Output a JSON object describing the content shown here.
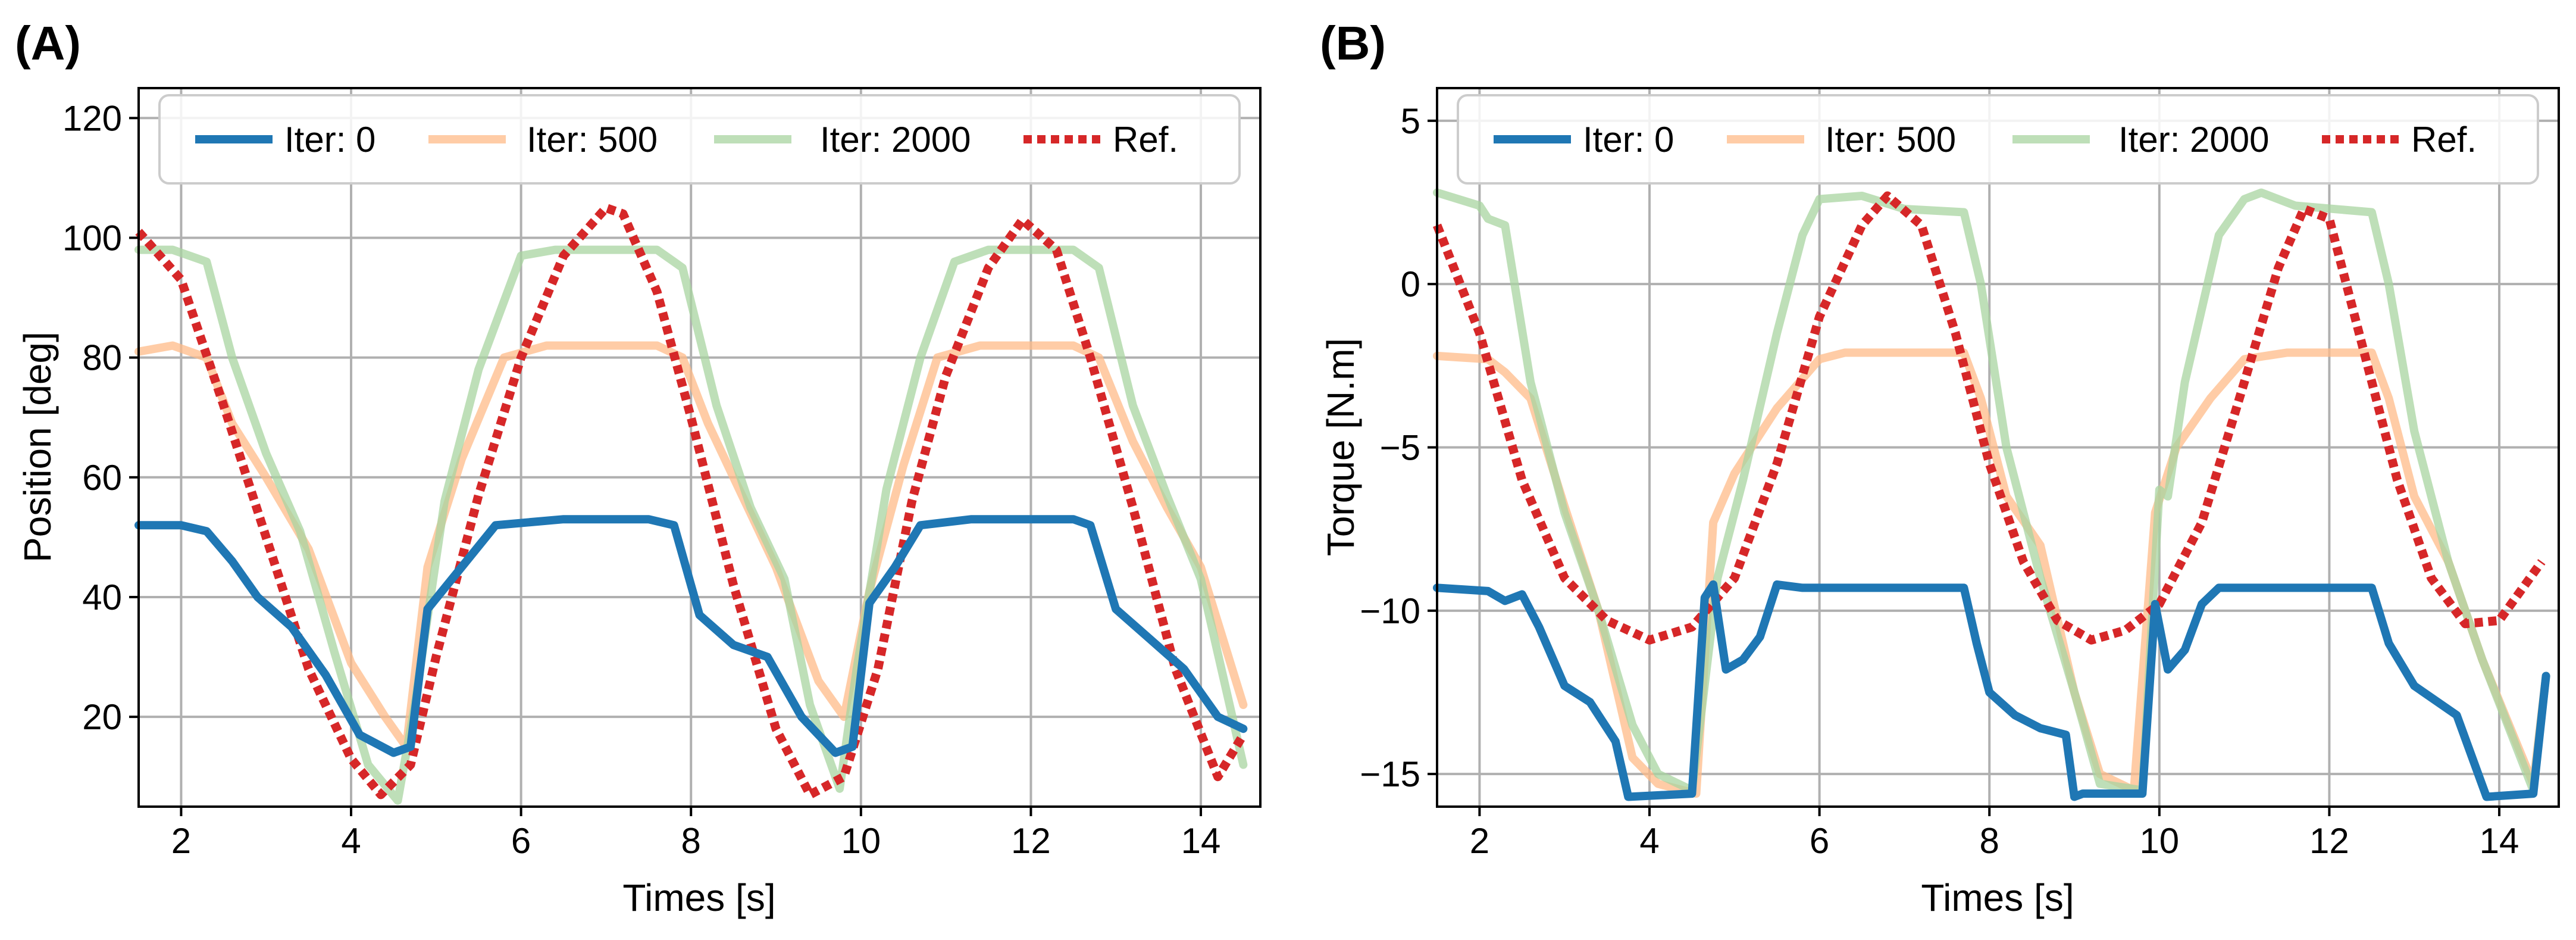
{
  "colors": {
    "iter0": "#1f77b4",
    "iter500": "#ffbb88",
    "iter2000": "#a8d4a0",
    "ref": "#d62728"
  },
  "chart_data": [
    {
      "panel_label": "(A)",
      "type": "line",
      "xlabel": "Times [s]",
      "ylabel": "Position [deg]",
      "xlim": [
        1.5,
        14.7
      ],
      "ylim": [
        5,
        125
      ],
      "xticks": [
        2,
        4,
        6,
        8,
        10,
        12,
        14
      ],
      "yticks": [
        20,
        40,
        60,
        80,
        100,
        120
      ],
      "grid": true,
      "legend_position": "top",
      "series": [
        {
          "name": "Iter: 0",
          "color": "#1f77b4",
          "style": "solid",
          "opacity": 1,
          "x": [
            1.5,
            2.0,
            2.3,
            2.6,
            2.9,
            3.3,
            3.7,
            4.1,
            4.5,
            4.7,
            4.9,
            5.3,
            5.7,
            6.5,
            7.5,
            7.8,
            8.1,
            8.5,
            8.9,
            9.3,
            9.7,
            9.9,
            10.1,
            10.4,
            10.7,
            11.3,
            12.5,
            12.7,
            13.0,
            13.4,
            13.8,
            14.2,
            14.5
          ],
          "values": [
            52,
            52,
            51,
            46,
            40,
            35,
            27,
            17,
            14,
            15,
            38,
            45,
            52,
            53,
            53,
            52,
            37,
            32,
            30,
            20,
            14,
            15,
            39,
            45,
            52,
            53,
            53,
            52,
            38,
            33,
            28,
            20,
            18
          ]
        },
        {
          "name": "Iter: 500",
          "color": "#ffbb88",
          "style": "solid",
          "opacity": 0.75,
          "x": [
            1.5,
            1.9,
            2.3,
            2.6,
            3.0,
            3.5,
            4.0,
            4.4,
            4.65,
            4.9,
            5.3,
            5.8,
            6.3,
            7.6,
            7.9,
            8.2,
            8.6,
            9.0,
            9.5,
            9.8,
            10.1,
            10.5,
            10.9,
            11.4,
            12.5,
            12.8,
            13.2,
            13.6,
            14.0,
            14.5
          ],
          "values": [
            81,
            82,
            80,
            69,
            60,
            48,
            29,
            20,
            15,
            45,
            63,
            80,
            82,
            82,
            80,
            69,
            57,
            45,
            26,
            20,
            41,
            62,
            80,
            82,
            82,
            80,
            66,
            55,
            45,
            22
          ]
        },
        {
          "name": "Iter: 2000",
          "color": "#a8d4a0",
          "style": "solid",
          "opacity": 0.75,
          "x": [
            1.5,
            1.9,
            2.3,
            2.6,
            3.0,
            3.4,
            3.8,
            4.2,
            4.55,
            4.75,
            5.1,
            5.5,
            6.0,
            6.4,
            7.6,
            7.9,
            8.3,
            8.7,
            9.1,
            9.4,
            9.75,
            9.95,
            10.3,
            10.7,
            11.1,
            11.5,
            12.5,
            12.8,
            13.2,
            13.6,
            14.0,
            14.5
          ],
          "values": [
            98,
            98,
            96,
            80,
            64,
            51,
            31,
            12,
            6,
            22,
            56,
            78,
            97,
            98,
            98,
            95,
            72,
            55,
            43,
            22,
            8,
            28,
            58,
            80,
            96,
            98,
            98,
            95,
            72,
            57,
            43,
            12
          ]
        },
        {
          "name": "Ref.",
          "color": "#d62728",
          "style": "dotted",
          "opacity": 1,
          "x": [
            1.5,
            2.0,
            2.5,
            3.0,
            3.5,
            4.0,
            4.35,
            4.7,
            5.0,
            5.5,
            6.0,
            6.5,
            7.0,
            7.2,
            7.6,
            8.0,
            8.5,
            9.0,
            9.4,
            9.8,
            10.2,
            10.6,
            11.0,
            11.5,
            11.9,
            12.3,
            12.7,
            13.2,
            13.7,
            14.2,
            14.5
          ],
          "values": [
            101,
            93,
            72,
            50,
            28,
            13,
            7,
            12,
            30,
            57,
            80,
            97,
            105,
            104,
            91,
            70,
            42,
            18,
            7,
            10,
            28,
            56,
            77,
            95,
            103,
            98,
            80,
            55,
            28,
            10,
            17
          ]
        }
      ]
    },
    {
      "panel_label": "(B)",
      "type": "line",
      "xlabel": "Times [s]",
      "ylabel": "Torque [N.m]",
      "xlim": [
        1.5,
        14.7
      ],
      "ylim": [
        -16,
        6
      ],
      "xticks": [
        2,
        4,
        6,
        8,
        10,
        12,
        14
      ],
      "yticks": [
        -15,
        -10,
        -5,
        0,
        5
      ],
      "grid": true,
      "legend_position": "top",
      "series": [
        {
          "name": "Iter: 0",
          "color": "#1f77b4",
          "style": "solid",
          "opacity": 1,
          "x": [
            1.5,
            2.1,
            2.3,
            2.5,
            2.7,
            3.0,
            3.3,
            3.6,
            3.75,
            4.5,
            4.65,
            4.75,
            4.9,
            5.1,
            5.3,
            5.5,
            5.8,
            7.7,
            7.85,
            8.0,
            8.3,
            8.6,
            8.9,
            9.0,
            9.1,
            9.8,
            9.95,
            10.1,
            10.3,
            10.5,
            10.7,
            12.5,
            12.7,
            13.0,
            13.5,
            13.85,
            14.4,
            14.55
          ],
          "values": [
            -9.3,
            -9.4,
            -9.7,
            -9.5,
            -10.5,
            -12.3,
            -12.8,
            -14,
            -15.7,
            -15.6,
            -9.6,
            -9.2,
            -11.8,
            -11.5,
            -10.8,
            -9.2,
            -9.3,
            -9.3,
            -11.0,
            -12.5,
            -13.2,
            -13.6,
            -13.8,
            -15.7,
            -15.6,
            -15.6,
            -9.8,
            -11.8,
            -11.2,
            -9.8,
            -9.3,
            -9.3,
            -11.0,
            -12.3,
            -13.2,
            -15.7,
            -15.6,
            -12.0
          ]
        },
        {
          "name": "Iter: 500",
          "color": "#ffbb88",
          "style": "solid",
          "opacity": 0.75,
          "x": [
            1.5,
            2.1,
            2.3,
            2.6,
            3.0,
            3.4,
            3.8,
            4.1,
            4.55,
            4.75,
            5.0,
            5.5,
            6.0,
            6.3,
            7.7,
            7.9,
            8.2,
            8.6,
            9.0,
            9.3,
            9.7,
            9.95,
            10.2,
            10.6,
            11.0,
            11.5,
            12.5,
            12.7,
            13.0,
            13.4,
            13.8,
            14.4,
            14.55
          ],
          "values": [
            -2.2,
            -2.3,
            -2.7,
            -3.5,
            -6.8,
            -10.0,
            -14.5,
            -15.3,
            -15.6,
            -7.3,
            -5.8,
            -3.8,
            -2.3,
            -2.1,
            -2.1,
            -3.5,
            -6.5,
            -8.0,
            -12.5,
            -15.0,
            -15.5,
            -7.0,
            -5.0,
            -3.5,
            -2.3,
            -2.1,
            -2.1,
            -3.5,
            -6.5,
            -8.5,
            -11.5,
            -15.3,
            -12.0
          ]
        },
        {
          "name": "Iter: 2000",
          "color": "#a8d4a0",
          "style": "solid",
          "opacity": 0.75,
          "x": [
            1.5,
            2.0,
            2.1,
            2.3,
            2.6,
            3.0,
            3.4,
            3.8,
            4.1,
            4.5,
            4.8,
            5.1,
            5.5,
            5.8,
            6.0,
            6.5,
            7.0,
            7.7,
            7.9,
            8.2,
            8.6,
            9.0,
            9.3,
            9.8,
            10.0,
            10.1,
            10.3,
            10.7,
            11.0,
            11.2,
            11.6,
            12.5,
            12.7,
            13.0,
            13.4,
            13.8,
            14.4,
            14.55
          ],
          "values": [
            2.8,
            2.4,
            2.0,
            1.8,
            -3.0,
            -7.0,
            -10.0,
            -13.5,
            -15.0,
            -15.5,
            -9.0,
            -6.0,
            -1.5,
            1.5,
            2.6,
            2.7,
            2.3,
            2.2,
            0.0,
            -5.0,
            -9.0,
            -12.5,
            -15.3,
            -15.5,
            -6.3,
            -6.5,
            -3.0,
            1.5,
            2.6,
            2.8,
            2.4,
            2.2,
            0.0,
            -4.5,
            -8.5,
            -11.5,
            -15.5,
            -12.0
          ]
        },
        {
          "name": "Ref.",
          "color": "#d62728",
          "style": "dotted",
          "opacity": 1,
          "x": [
            1.5,
            2.0,
            2.5,
            3.0,
            3.5,
            4.0,
            4.5,
            5.0,
            5.5,
            6.0,
            6.5,
            6.8,
            7.2,
            7.6,
            8.0,
            8.4,
            8.8,
            9.2,
            9.6,
            10.0,
            10.5,
            11.0,
            11.4,
            11.7,
            12.0,
            12.4,
            12.8,
            13.2,
            13.6,
            14.0,
            14.5
          ],
          "values": [
            1.8,
            -1.5,
            -6.0,
            -9.0,
            -10.3,
            -10.9,
            -10.5,
            -9.0,
            -5.5,
            -1.0,
            1.8,
            2.7,
            1.8,
            -1.5,
            -5.5,
            -8.5,
            -10.3,
            -10.9,
            -10.6,
            -9.8,
            -7.3,
            -3.0,
            0.5,
            2.3,
            2.0,
            -2.0,
            -6.0,
            -9.0,
            -10.4,
            -10.3,
            -8.5
          ]
        }
      ]
    }
  ]
}
